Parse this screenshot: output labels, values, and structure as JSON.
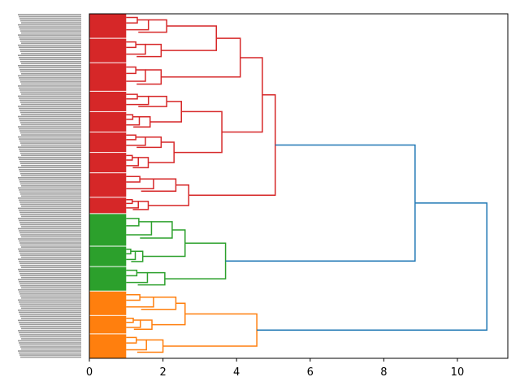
{
  "chart_data": {
    "type": "dendrogram",
    "title": "",
    "xlabel": "",
    "ylabel": "",
    "xlim": [
      0,
      11.37
    ],
    "xticks": [
      "0",
      "2",
      "4",
      "6",
      "8",
      "10"
    ],
    "xtick_values": [
      0,
      2,
      4,
      6,
      8,
      10
    ],
    "orientation": "left",
    "leaf_labels_note_free": true,
    "colors": {
      "red": "#d62728",
      "green": "#2ca02c",
      "orange": "#ff7f0e",
      "above_threshold": "#1f77b4"
    },
    "tree": {
      "h": 10.8,
      "children": [
        {
          "h": 8.85,
          "children": [
            {
              "h": 5.05,
              "color": "red",
              "children": [
                {
                  "h": 4.7,
                  "children": [
                    {
                      "h": 4.1,
                      "children": [
                        {
                          "h": 3.45,
                          "children": [
                            {
                              "leaves": 12,
                              "h": 2.1
                            },
                            {
                              "leaves": 12,
                              "h": 1.95
                            }
                          ]
                        },
                        {
                          "leaves": 14,
                          "h": 1.95
                        }
                      ]
                    },
                    {
                      "h": 3.6,
                      "children": [
                        {
                          "h": 2.5,
                          "children": [
                            {
                              "leaves": 10,
                              "h": 2.1
                            },
                            {
                              "leaves": 10,
                              "h": 1.65
                            }
                          ]
                        },
                        {
                          "h": 2.3,
                          "children": [
                            {
                              "leaves": 10,
                              "h": 1.95
                            },
                            {
                              "leaves": 10,
                              "h": 1.6
                            }
                          ]
                        }
                      ]
                    }
                  ]
                },
                {
                  "h": 2.7,
                  "children": [
                    {
                      "leaves": 12,
                      "h": 2.35
                    },
                    {
                      "leaves": 8,
                      "h": 1.6
                    }
                  ]
                }
              ]
            },
            {
              "h": 3.7,
              "color": "green",
              "children": [
                {
                  "h": 2.6,
                  "children": [
                    {
                      "leaves": 16,
                      "h": 2.25
                    },
                    {
                      "leaves": 10,
                      "h": 1.45
                    }
                  ]
                },
                {
                  "leaves": 12,
                  "h": 2.05
                }
              ]
            }
          ]
        },
        {
          "h": 4.55,
          "color": "orange",
          "children": [
            {
              "h": 2.6,
              "children": [
                {
                  "leaves": 12,
                  "h": 2.35
                },
                {
                  "leaves": 9,
                  "h": 1.7
                }
              ]
            },
            {
              "leaves": 12,
              "h": 2.0
            }
          ]
        }
      ]
    }
  }
}
